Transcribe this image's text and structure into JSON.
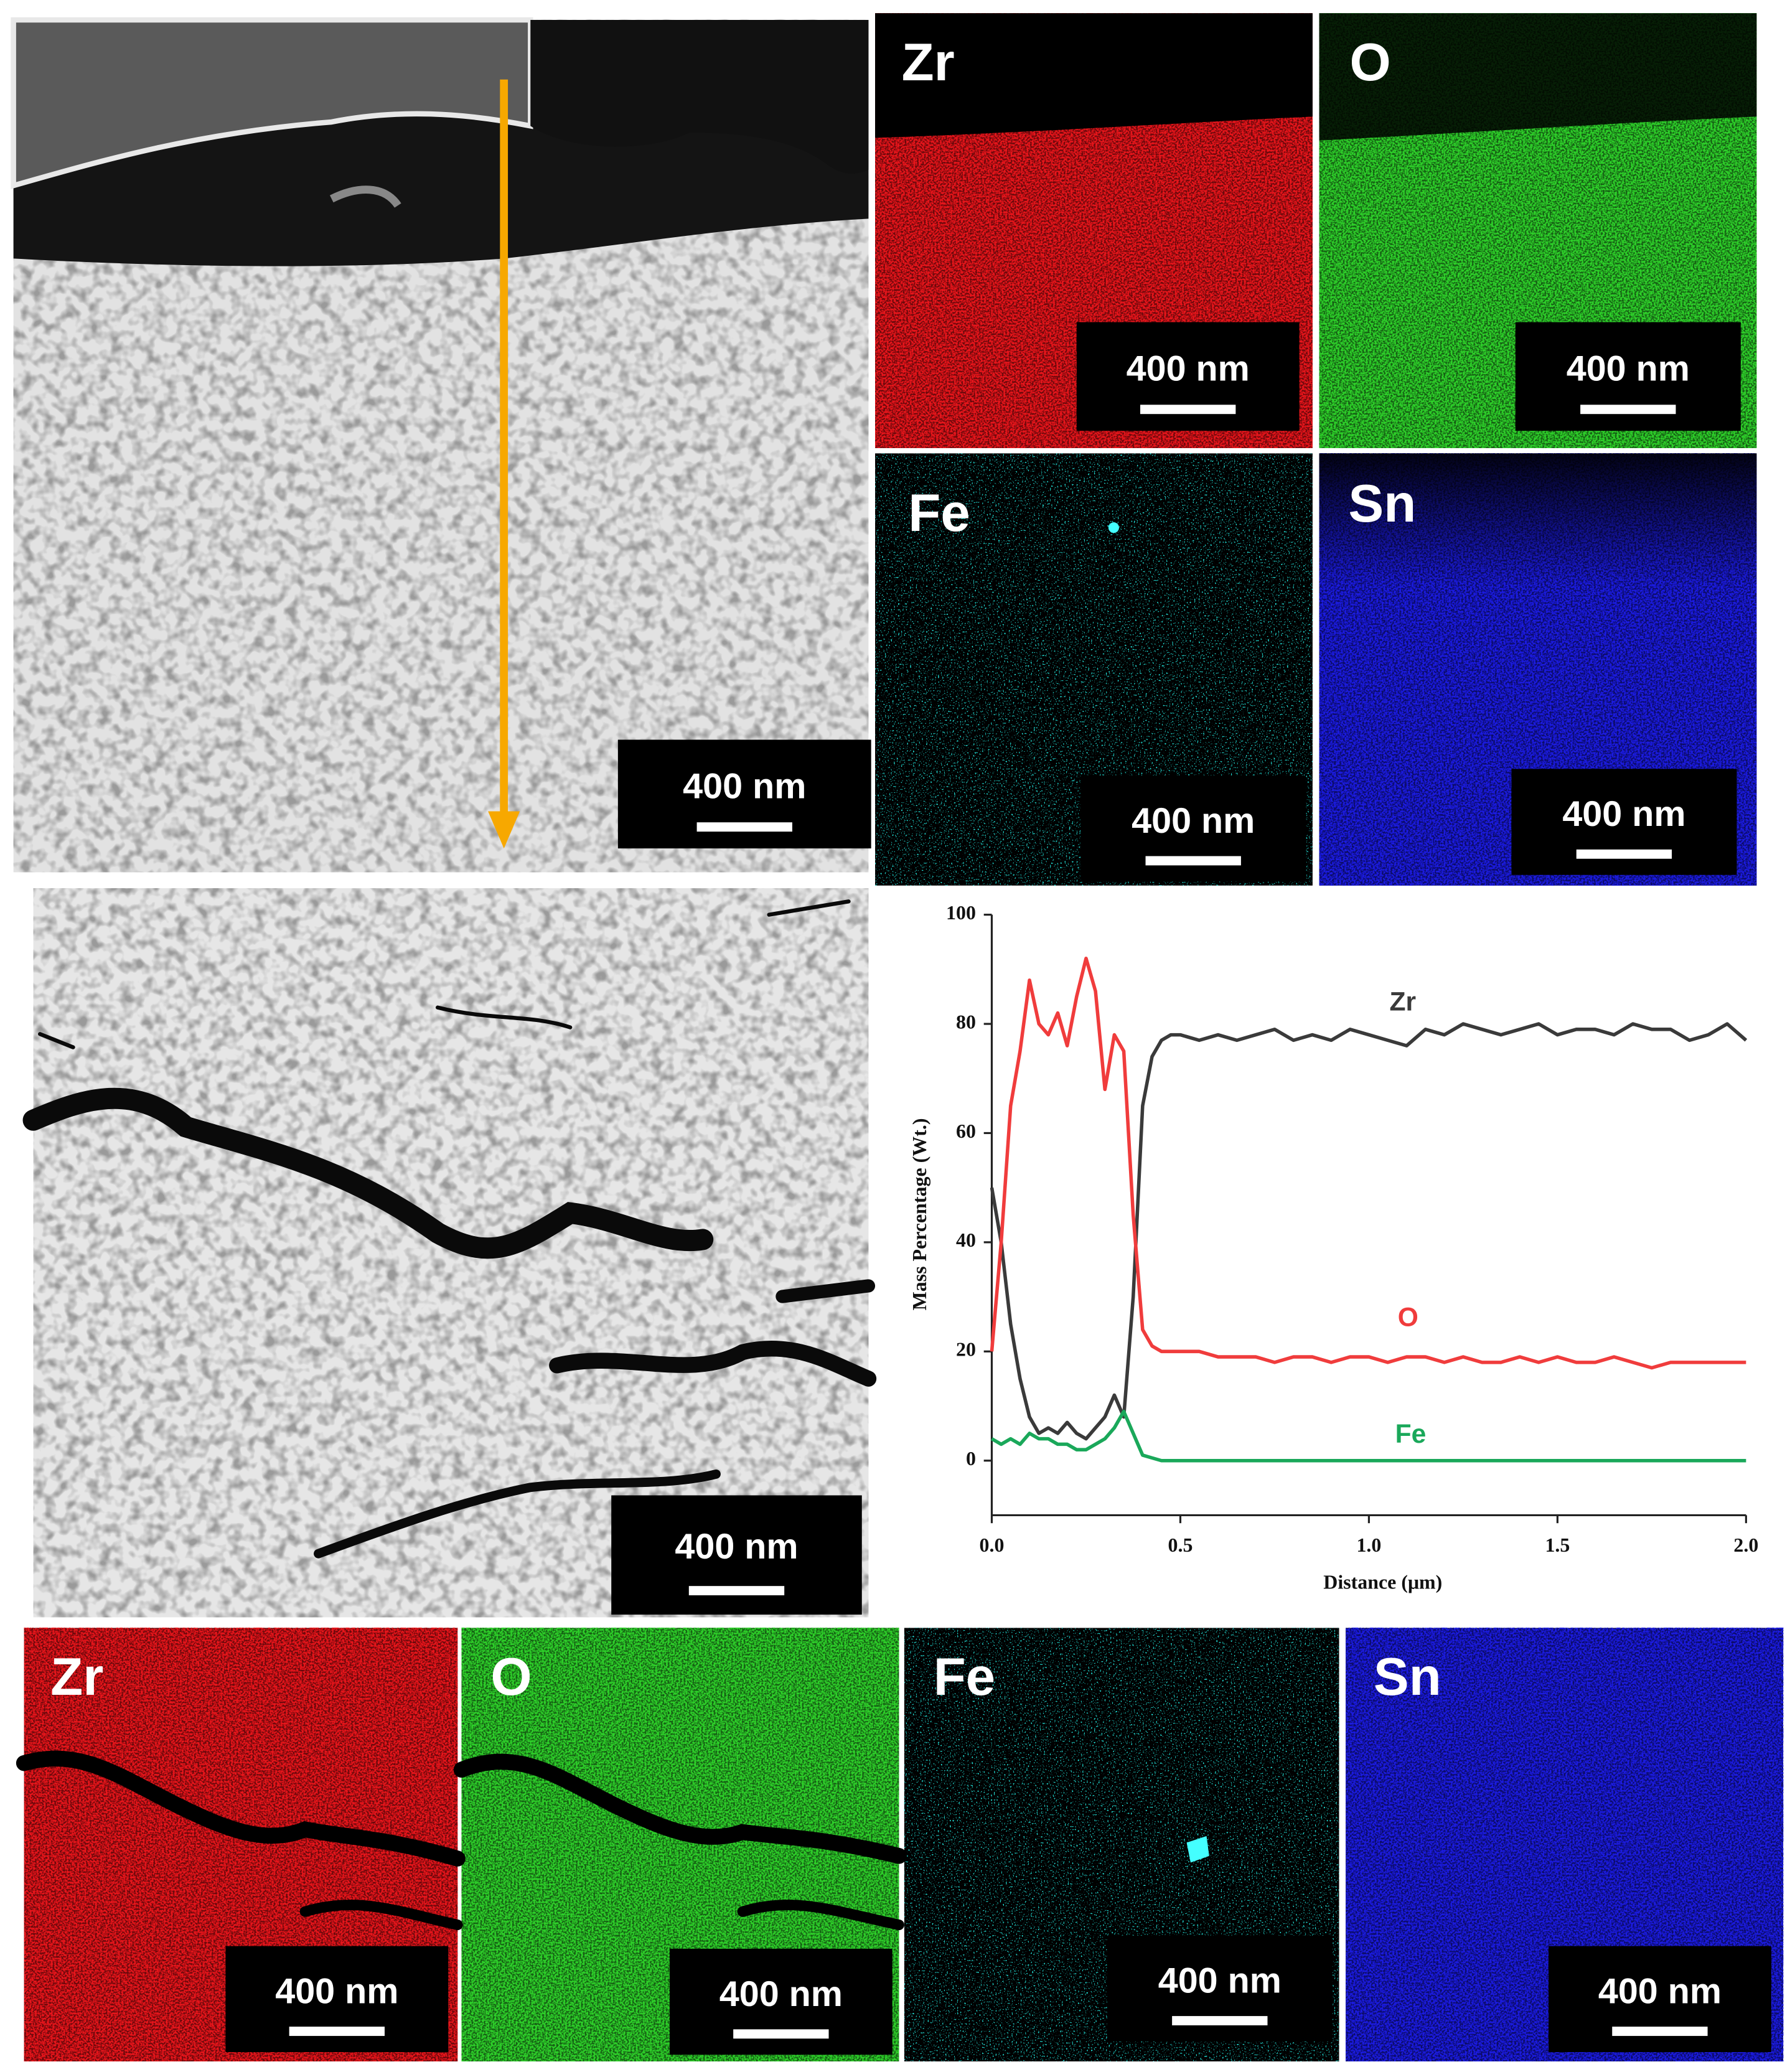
{
  "panels": {
    "sem_top": {
      "scale_bar": "400 nm"
    },
    "maps_top": [
      {
        "element": "Zr",
        "color": "#e8141a",
        "scale_bar": "400 nm"
      },
      {
        "element": "O",
        "color": "#2ed12a",
        "scale_bar": "400 nm"
      },
      {
        "element": "Fe",
        "color": "#20d8d0",
        "scale_bar": "400 nm"
      },
      {
        "element": "Sn",
        "color": "#1a1ae0",
        "scale_bar": "400 nm"
      }
    ],
    "sem_middle": {
      "scale_bar": "400 nm"
    },
    "maps_bottom": [
      {
        "element": "Zr",
        "color": "#e8141a",
        "scale_bar": "400 nm"
      },
      {
        "element": "O",
        "color": "#2ed12a",
        "scale_bar": "400 nm"
      },
      {
        "element": "Fe",
        "color": "#20d8d0",
        "scale_bar": "400 nm"
      },
      {
        "element": "Sn",
        "color": "#1a1ae0",
        "scale_bar": "400 nm"
      }
    ]
  },
  "chart_data": {
    "type": "line",
    "x_label": "Distance (μm)",
    "y_label": "Mass Percentage (Wt.)",
    "x": [
      0,
      0.025,
      0.05,
      0.075,
      0.1,
      0.125,
      0.15,
      0.175,
      0.2,
      0.225,
      0.25,
      0.275,
      0.3,
      0.325,
      0.35,
      0.375,
      0.4,
      0.425,
      0.45,
      0.475,
      0.5,
      0.55,
      0.6,
      0.65,
      0.7,
      0.75,
      0.8,
      0.85,
      0.9,
      0.95,
      1.0,
      1.05,
      1.1,
      1.15,
      1.2,
      1.25,
      1.3,
      1.35,
      1.4,
      1.45,
      1.5,
      1.55,
      1.6,
      1.65,
      1.7,
      1.75,
      1.8,
      1.85,
      1.9,
      1.95,
      2.0
    ],
    "series": [
      {
        "name": "Zr",
        "color": "#3a3a3a",
        "values": [
          50,
          40,
          25,
          15,
          8,
          5,
          6,
          5,
          7,
          5,
          4,
          6,
          8,
          12,
          8,
          30,
          65,
          74,
          77,
          78,
          78,
          77,
          78,
          77,
          78,
          79,
          77,
          78,
          77,
          79,
          78,
          77,
          76,
          79,
          78,
          80,
          79,
          78,
          79,
          80,
          78,
          79,
          79,
          78,
          80,
          79,
          79,
          77,
          78,
          80,
          77
        ]
      },
      {
        "name": "O",
        "color": "#f03c3c",
        "values": [
          20,
          40,
          65,
          75,
          88,
          80,
          78,
          82,
          76,
          85,
          92,
          86,
          68,
          78,
          75,
          45,
          24,
          21,
          20,
          20,
          20,
          20,
          19,
          19,
          19,
          18,
          19,
          19,
          18,
          19,
          19,
          18,
          19,
          19,
          18,
          19,
          18,
          18,
          19,
          18,
          19,
          18,
          18,
          19,
          18,
          17,
          18,
          18,
          18,
          18,
          18
        ]
      },
      {
        "name": "Fe",
        "color": "#1aa85a",
        "values": [
          4,
          3,
          4,
          3,
          5,
          4,
          4,
          3,
          3,
          2,
          2,
          3,
          4,
          6,
          9,
          5,
          1,
          0.5,
          0,
          0,
          0,
          0,
          0,
          0,
          0,
          0,
          0,
          0,
          0,
          0,
          0,
          0,
          0,
          0,
          0,
          0,
          0,
          0,
          0,
          0,
          0,
          0,
          0,
          0,
          0,
          0,
          0,
          0,
          0,
          0,
          0
        ]
      }
    ],
    "xlim": [
      0,
      2
    ],
    "xticks": [
      {
        "value": 0,
        "label": "0.0"
      },
      0.5,
      {
        "value": 1,
        "label": "1.0"
      },
      1.5,
      {
        "value": 2,
        "label": "2.0"
      }
    ],
    "ylim": [
      -10,
      100
    ],
    "yticks": [
      0,
      20,
      40,
      60,
      80,
      100
    ]
  }
}
